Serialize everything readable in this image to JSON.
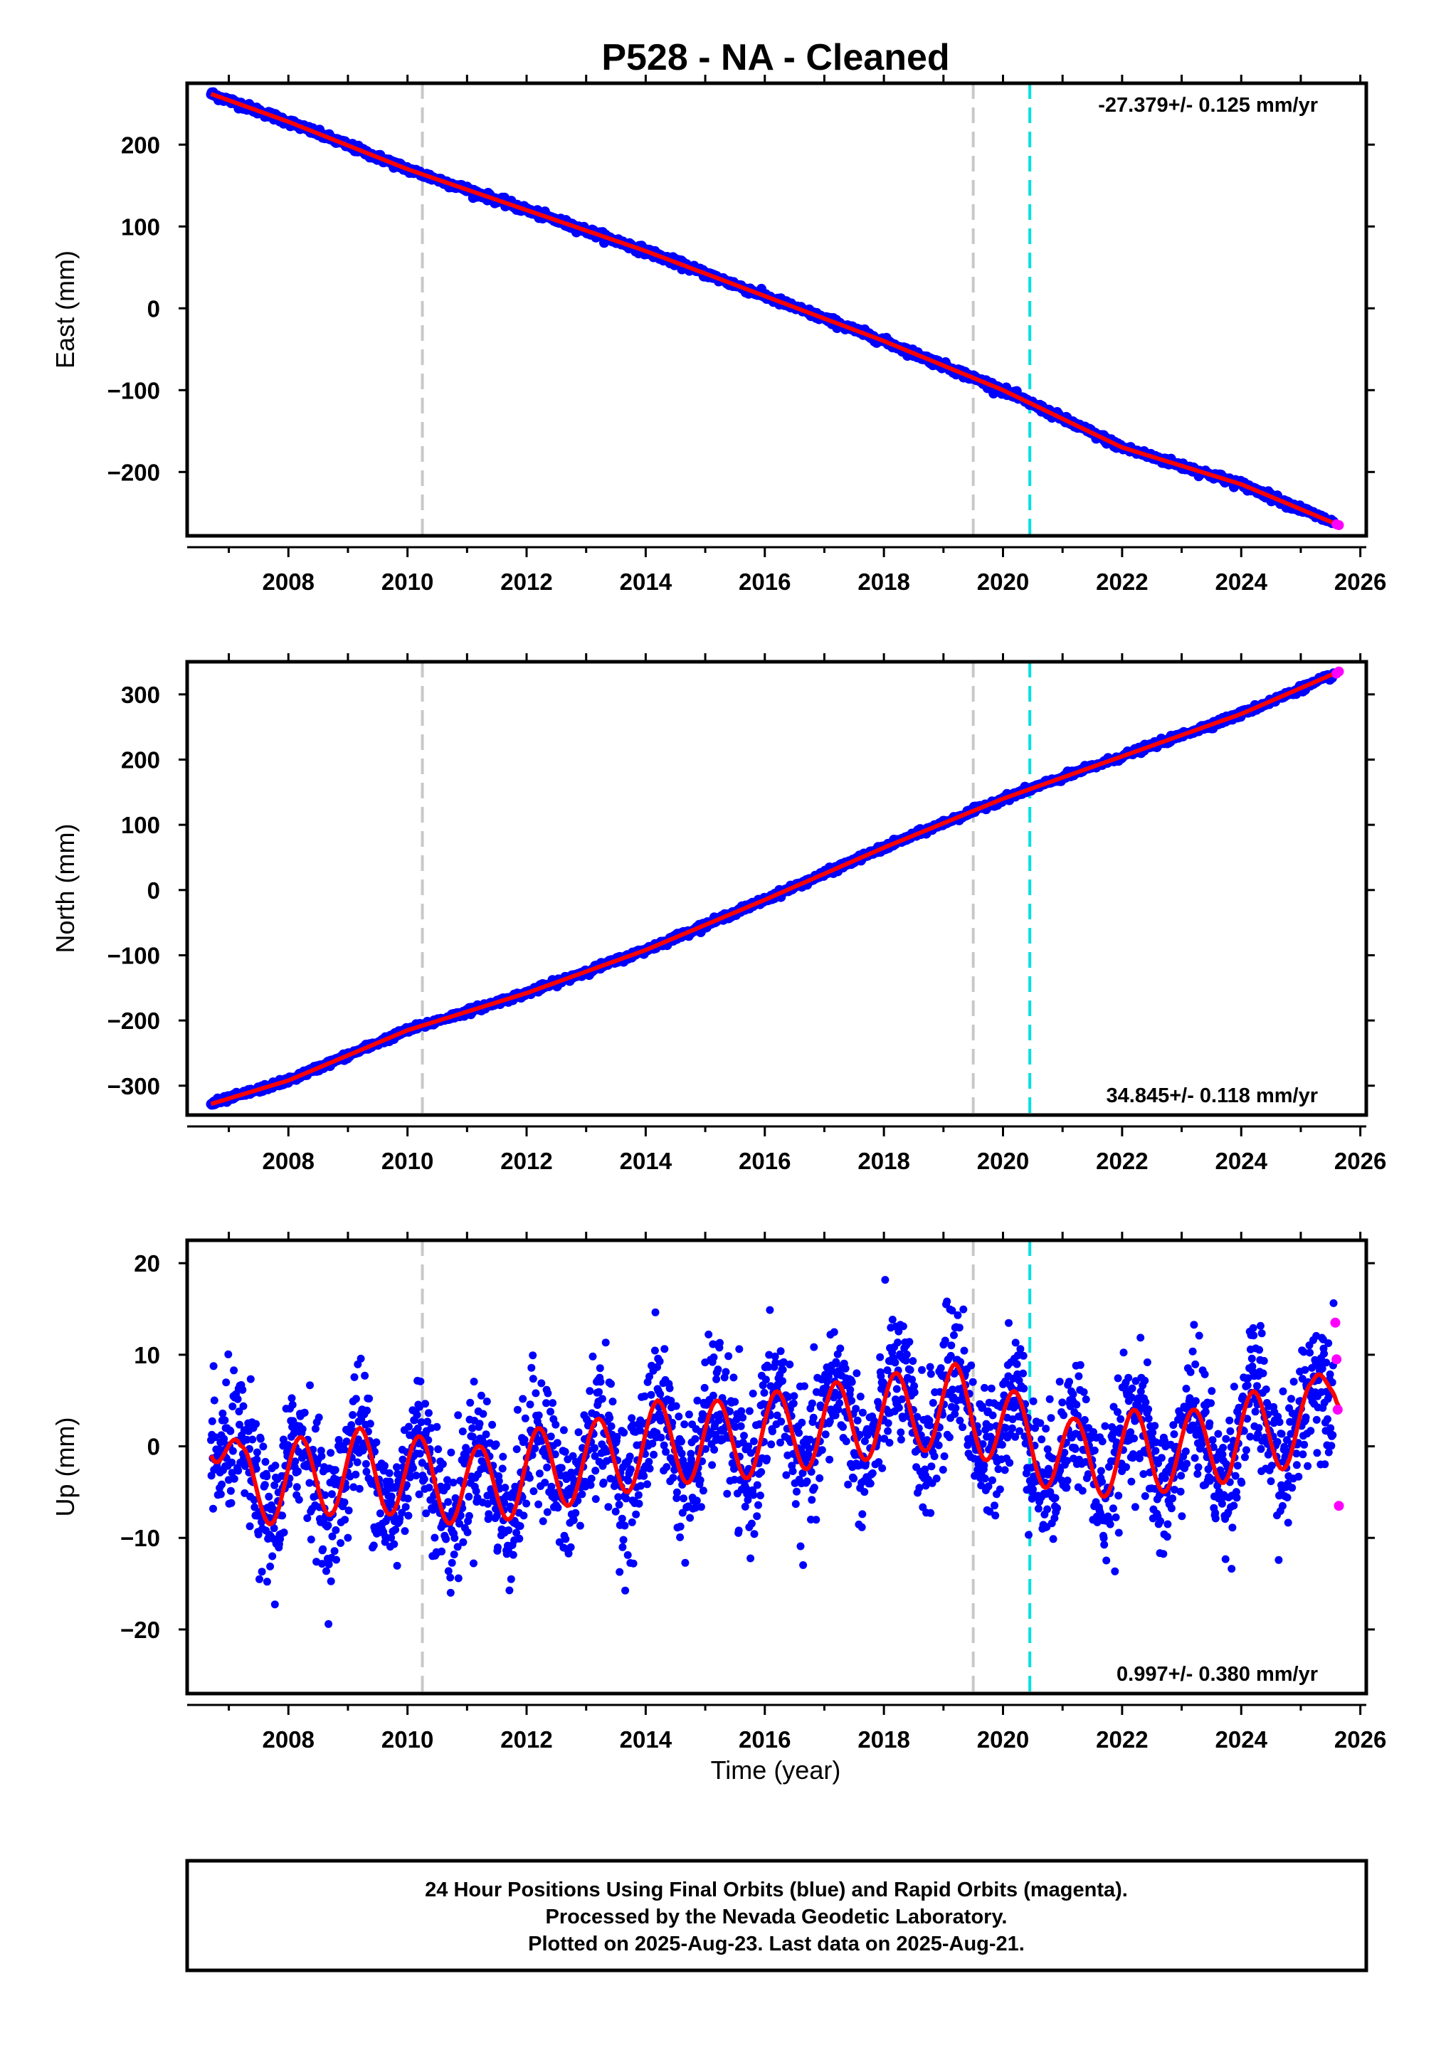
{
  "title": "P528  - NA - Cleaned",
  "xlabel": "Time (year)",
  "footer": {
    "line1": "24 Hour Positions Using Final Orbits (blue) and Rapid Orbits (magenta).",
    "line2": "Processed by the Nevada Geodetic Laboratory.",
    "line3": "Plotted on 2025-Aug-23. Last data on 2025-Aug-21."
  },
  "colors": {
    "final": "#0000ff",
    "rapid": "#ff00ff",
    "model": "#ff0000",
    "equipment_change": "#c8c8c8",
    "earthquake": "#00e0e0"
  },
  "chart_data": [
    {
      "type": "scatter",
      "panel": "east",
      "ylabel": "East (mm)",
      "rate": "-27.379+/- 0.125 mm/yr",
      "rate_position": "top-right",
      "xlim": [
        2006.3,
        2026.1
      ],
      "ylim": [
        -278,
        275
      ],
      "xticks": [
        "2008",
        "2010",
        "2012",
        "2014",
        "2016",
        "2018",
        "2020",
        "2022",
        "2024",
        "2026"
      ],
      "yticks": [
        "200",
        "100",
        "0",
        "−100",
        "−200"
      ],
      "grid": false,
      "vlines": [
        {
          "x": 2010.25,
          "kind": "equipment_change"
        },
        {
          "x": 2019.5,
          "kind": "equipment_change"
        },
        {
          "x": 2020.45,
          "kind": "earthquake"
        }
      ],
      "series": [
        {
          "kind": "final_orbits",
          "x": [
            2006.7,
            2008.0,
            2010.0,
            2012.0,
            2014.0,
            2016.0,
            2018.0,
            2020.0,
            2022.0,
            2024.0,
            2025.55
          ],
          "y": [
            262,
            228,
            170,
            120,
            70,
            15,
            -40,
            -100,
            -170,
            -215,
            -262
          ]
        },
        {
          "kind": "rapid_orbits",
          "x": [
            2025.6,
            2025.64
          ],
          "y": [
            -264,
            -265
          ]
        },
        {
          "kind": "model",
          "x": [
            2006.7,
            2008.0,
            2010.0,
            2012.0,
            2014.0,
            2016.0,
            2018.0,
            2020.0,
            2022.0,
            2024.0,
            2025.64
          ],
          "y": [
            262,
            228,
            170,
            120,
            70,
            15,
            -40,
            -100,
            -170,
            -215,
            -265
          ]
        }
      ]
    },
    {
      "type": "scatter",
      "panel": "north",
      "ylabel": "North (mm)",
      "rate": "34.845+/- 0.118 mm/yr",
      "rate_position": "bottom-right",
      "xlim": [
        2006.3,
        2026.1
      ],
      "ylim": [
        -345,
        350
      ],
      "xticks": [
        "2008",
        "2010",
        "2012",
        "2014",
        "2016",
        "2018",
        "2020",
        "2022",
        "2024",
        "2026"
      ],
      "yticks": [
        "300",
        "200",
        "100",
        "0",
        "−100",
        "−200",
        "−300"
      ],
      "grid": false,
      "vlines": [
        {
          "x": 2010.25,
          "kind": "equipment_change"
        },
        {
          "x": 2019.5,
          "kind": "equipment_change"
        },
        {
          "x": 2020.45,
          "kind": "earthquake"
        }
      ],
      "series": [
        {
          "kind": "final_orbits",
          "x": [
            2006.7,
            2008.0,
            2010.0,
            2012.0,
            2014.0,
            2016.0,
            2018.0,
            2020.0,
            2022.0,
            2024.0,
            2025.55
          ],
          "y": [
            -328,
            -292,
            -215,
            -158,
            -92,
            -15,
            65,
            140,
            205,
            270,
            330
          ]
        },
        {
          "kind": "rapid_orbits",
          "x": [
            2025.6,
            2025.64
          ],
          "y": [
            332,
            335
          ]
        },
        {
          "kind": "model",
          "x": [
            2006.7,
            2008.0,
            2010.0,
            2012.0,
            2014.0,
            2016.0,
            2018.0,
            2020.0,
            2022.0,
            2024.0,
            2025.64
          ],
          "y": [
            -328,
            -292,
            -215,
            -158,
            -92,
            -15,
            65,
            140,
            205,
            270,
            335
          ]
        }
      ]
    },
    {
      "type": "scatter",
      "panel": "up",
      "ylabel": "Up (mm)",
      "rate": "0.997+/- 0.380 mm/yr",
      "rate_position": "bottom-right",
      "xlim": [
        2006.3,
        2026.1
      ],
      "ylim": [
        -27,
        22.5
      ],
      "xticks": [
        "2008",
        "2010",
        "2012",
        "2014",
        "2016",
        "2018",
        "2020",
        "2022",
        "2024",
        "2026"
      ],
      "yticks": [
        "20",
        "10",
        "0",
        "−10",
        "−20"
      ],
      "grid": false,
      "vlines": [
        {
          "x": 2010.25,
          "kind": "equipment_change"
        },
        {
          "x": 2019.5,
          "kind": "equipment_change"
        },
        {
          "x": 2020.45,
          "kind": "earthquake"
        }
      ],
      "series": [
        {
          "kind": "final_orbits",
          "x": [
            2006.7,
            2007.2,
            2008.2,
            2009.2,
            2010.3,
            2011.2,
            2012.2,
            2013.2,
            2014.2,
            2015.2,
            2016.2,
            2017.2,
            2018.2,
            2019.2,
            2020.2,
            2021.2,
            2022.2,
            2023.2,
            2024.2,
            2025.2,
            2025.55
          ],
          "y": [
            -1,
            -9,
            -8,
            -7,
            -8,
            -9,
            -7,
            -6,
            -4,
            -4,
            -3,
            -2,
            -1,
            0,
            -3,
            -6,
            -5,
            -5,
            -3,
            -2,
            4
          ]
        },
        {
          "kind": "rapid_orbits",
          "x": [
            2025.58,
            2025.6,
            2025.62,
            2025.64
          ],
          "y": [
            13.5,
            9.5,
            4,
            -6.5
          ]
        },
        {
          "kind": "model",
          "x": [
            2006.7,
            2025.64
          ],
          "y": [
            0,
            6
          ]
        }
      ]
    }
  ]
}
